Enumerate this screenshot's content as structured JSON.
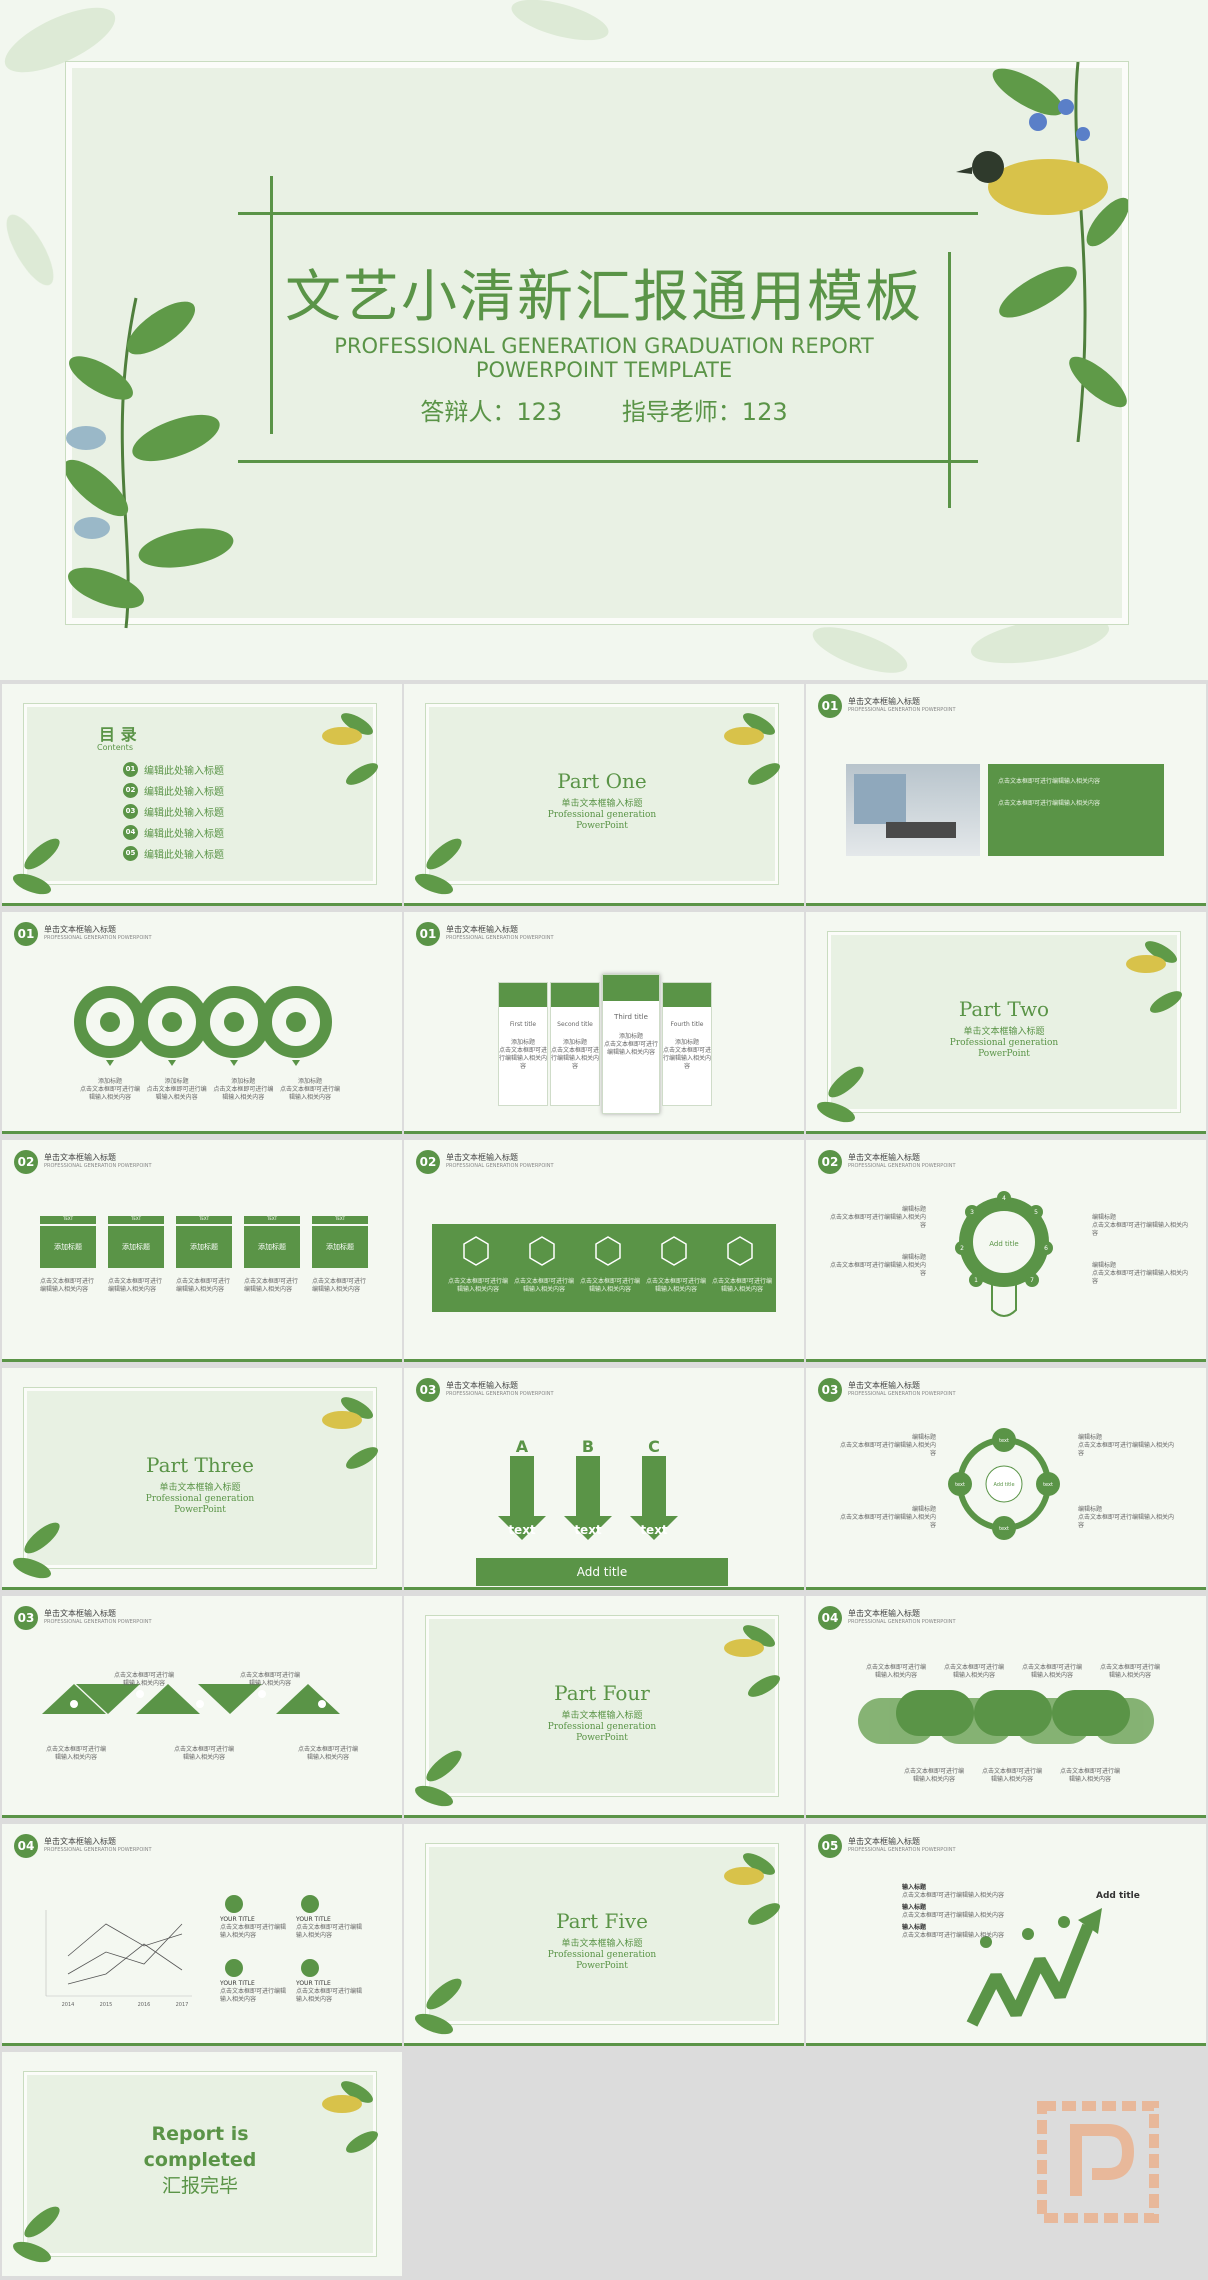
{
  "hero": {
    "title": "文艺小清新汇报通用模板",
    "subtitle_line1": "PROFESSIONAL GENERATION GRADUATION REPORT",
    "subtitle_line2": "POWERPOINT TEMPLATE",
    "presenter": "答辩人：123",
    "advisor": "指导老师：123"
  },
  "contents": {
    "title": "目 录",
    "subtitle": "Contents",
    "items": [
      {
        "num": "01",
        "label": "编辑此处输入标题"
      },
      {
        "num": "02",
        "label": "编辑此处输入标题"
      },
      {
        "num": "03",
        "label": "编辑此处输入标题"
      },
      {
        "num": "04",
        "label": "编辑此处输入标题"
      },
      {
        "num": "05",
        "label": "编辑此处输入标题"
      }
    ]
  },
  "parts": [
    {
      "title": "Part One",
      "sub1": "单击文本框输入标题",
      "sub2": "Professional generation",
      "sub3": "PowerPoint"
    },
    {
      "title": "Part Two",
      "sub1": "单击文本框输入标题",
      "sub2": "Professional generation",
      "sub3": "PowerPoint"
    },
    {
      "title": "Part Three",
      "sub1": "单击文本框输入标题",
      "sub2": "Professional generation",
      "sub3": "PowerPoint"
    },
    {
      "title": "Part Four",
      "sub1": "单击文本框输入标题",
      "sub2": "Professional generation",
      "sub3": "PowerPoint"
    },
    {
      "title": "Part Five",
      "sub1": "单击文本框输入标题",
      "sub2": "Professional generation",
      "sub3": "PowerPoint"
    }
  ],
  "header": {
    "title": "单击文本框输入标题",
    "subtitle": "PROFESSIONAL GENERATION POWERPOINT",
    "nums": [
      "01",
      "02",
      "03",
      "04",
      "05"
    ]
  },
  "slide_labels": {
    "add_title": "添加标题",
    "body": "点击文本框即可进行编辑输入相关内容",
    "first": "First title",
    "second": "Second title",
    "third": "Third title",
    "fourth": "Fourth title",
    "text": "TEXT",
    "edit_title": "编辑标题",
    "add_title_en": "Add title",
    "text_word": "text",
    "your_title": "YOUR TITLE",
    "input_title": "输入标题",
    "abc": [
      "A",
      "B",
      "C"
    ],
    "years": [
      "2014",
      "2015",
      "2016",
      "2017"
    ],
    "gear_nums": [
      "1",
      "2",
      "3",
      "4",
      "5",
      "6",
      "7"
    ]
  },
  "ending": {
    "line1": "Report is",
    "line2": "completed",
    "line3": "汇报完毕"
  },
  "colors": {
    "accent": "#5a9447",
    "light": "#e8f1e3",
    "background": "#dcdcdc"
  }
}
